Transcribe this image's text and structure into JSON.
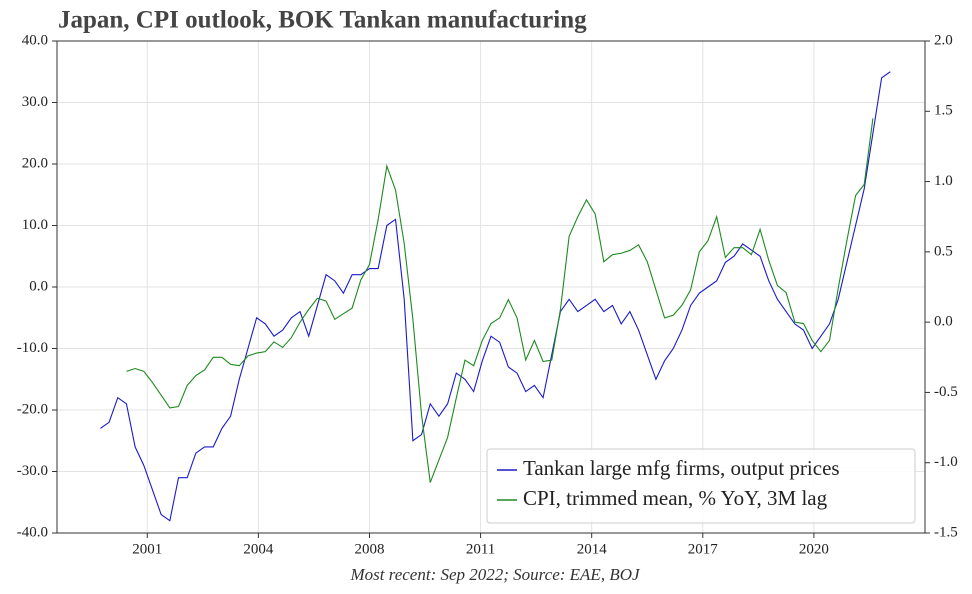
{
  "chart_data": {
    "type": "line",
    "title": "Japan, CPI outlook, BOK Tankan manufacturing",
    "footnote": "Most recent: Sep 2022; Source: EAE, BOJ",
    "x": [
      2000.25,
      2000.5,
      2000.75,
      2001,
      2001.25,
      2001.5,
      2001.75,
      2002,
      2002.25,
      2002.5,
      2002.75,
      2003,
      2003.25,
      2003.5,
      2003.75,
      2004,
      2004.25,
      2004.5,
      2004.75,
      2005,
      2005.25,
      2005.5,
      2005.75,
      2006,
      2006.25,
      2006.5,
      2006.75,
      2007,
      2007.25,
      2007.5,
      2007.75,
      2008,
      2008.25,
      2008.5,
      2008.75,
      2009,
      2009.25,
      2009.5,
      2009.75,
      2010,
      2010.25,
      2010.5,
      2010.75,
      2011,
      2011.25,
      2011.5,
      2011.75,
      2012,
      2012.25,
      2012.5,
      2012.75,
      2013,
      2013.25,
      2013.5,
      2013.75,
      2014,
      2014.25,
      2014.5,
      2014.75,
      2015,
      2015.25,
      2015.5,
      2015.75,
      2016,
      2016.25,
      2016.5,
      2016.75,
      2017,
      2017.25,
      2017.5,
      2017.75,
      2018,
      2018.25,
      2018.5,
      2018.75,
      2019,
      2019.25,
      2019.5,
      2019.75,
      2020,
      2020.25,
      2020.5,
      2020.75,
      2021,
      2021.25,
      2021.5,
      2021.75,
      2022,
      2022.25,
      2022.5,
      2022.75,
      2023
    ],
    "series": [
      {
        "name": "Tankan large mfg firms, output prices",
        "color": "#1a1acc",
        "axis": "y",
        "values": [
          -23,
          -22,
          -18,
          -19,
          -26,
          -29,
          -33,
          -37,
          -38,
          -31,
          -31,
          -27,
          -26,
          -26,
          -23,
          -21,
          -15,
          -10,
          -5,
          -6,
          -8,
          -7,
          -5,
          -4,
          -8,
          -3,
          2,
          1,
          -1,
          2,
          2,
          3,
          3,
          10,
          11,
          -2,
          -25,
          -24,
          -19,
          -21,
          -19,
          -14,
          -15,
          -17,
          -12,
          -8,
          -9,
          -13,
          -14,
          -17,
          -16,
          -18,
          -11,
          -4,
          -2,
          -4,
          -3,
          -2,
          -4,
          -3,
          -6,
          -4,
          -7,
          -11,
          -15,
          -12,
          -10,
          -7,
          -3,
          -1,
          0,
          1,
          4,
          5,
          7,
          6,
          5,
          1,
          -2,
          -4,
          -6,
          -7,
          -10,
          -8,
          -6,
          -2,
          4,
          10,
          16,
          25,
          34,
          35
        ]
      },
      {
        "name": "CPI, trimmed mean, % YoY, 3M lag",
        "color": "#1e8a1e",
        "axis": "y2",
        "values": [
          null,
          null,
          null,
          -0.35,
          -0.33,
          -0.35,
          -0.43,
          -0.52,
          -0.61,
          -0.6,
          -0.45,
          -0.38,
          -0.34,
          -0.25,
          -0.25,
          -0.3,
          -0.31,
          -0.24,
          -0.22,
          -0.21,
          -0.14,
          -0.18,
          -0.11,
          0,
          0.09,
          0.17,
          0.15,
          0.02,
          0.06,
          0.1,
          0.3,
          0.41,
          0.73,
          1.11,
          0.94,
          0.56,
          0.02,
          -0.66,
          -1.14,
          -0.98,
          -0.82,
          -0.54,
          -0.27,
          -0.31,
          -0.13,
          -0.01,
          0.03,
          0.16,
          0.03,
          -0.27,
          -0.13,
          -0.28,
          -0.27,
          0.09,
          0.61,
          0.75,
          0.87,
          0.77,
          0.43,
          0.48,
          0.49,
          0.51,
          0.55,
          0.43,
          0.23,
          0.03,
          0.05,
          0.12,
          0.23,
          0.5,
          0.58,
          0.75,
          0.46,
          0.53,
          0.53,
          0.48,
          0.66,
          0.44,
          0.26,
          0.21,
          0,
          -0.01,
          -0.13,
          -0.21,
          -0.13,
          0.24,
          0.58,
          0.9,
          0.98,
          1.45,
          null,
          null
        ]
      }
    ],
    "xlim": [
      1999,
      2024
    ],
    "xticks": [
      {
        "value": 2001.6,
        "label": "2001"
      },
      {
        "value": 2004.8,
        "label": "2004"
      },
      {
        "value": 2008.0,
        "label": "2008"
      },
      {
        "value": 2011.2,
        "label": "2011"
      },
      {
        "value": 2014.4,
        "label": "2014"
      },
      {
        "value": 2017.6,
        "label": "2017"
      },
      {
        "value": 2020.8,
        "label": "2020"
      }
    ],
    "ylim": [
      -40,
      40
    ],
    "yticks": [
      {
        "value": -40,
        "label": "-40.0"
      },
      {
        "value": -30,
        "label": "-30.0"
      },
      {
        "value": -20,
        "label": "-20.0"
      },
      {
        "value": -10,
        "label": "-10.0"
      },
      {
        "value": 0,
        "label": "0.0"
      },
      {
        "value": 10,
        "label": "10.0"
      },
      {
        "value": 20,
        "label": "20.0"
      },
      {
        "value": 30,
        "label": "30.0"
      },
      {
        "value": 40,
        "label": "40.0"
      }
    ],
    "y2lim": [
      -1.5,
      2.0
    ],
    "y2ticks": [
      -1.5,
      {
        "value": -1,
        "label": "-1.0"
      },
      -0.5,
      {
        "value": 0,
        "label": "0.0"
      },
      0.5,
      {
        "value": 1,
        "label": "1.0"
      },
      1.5,
      {
        "value": 2,
        "label": "2.0"
      }
    ],
    "grid": true,
    "legend": "lower right"
  }
}
